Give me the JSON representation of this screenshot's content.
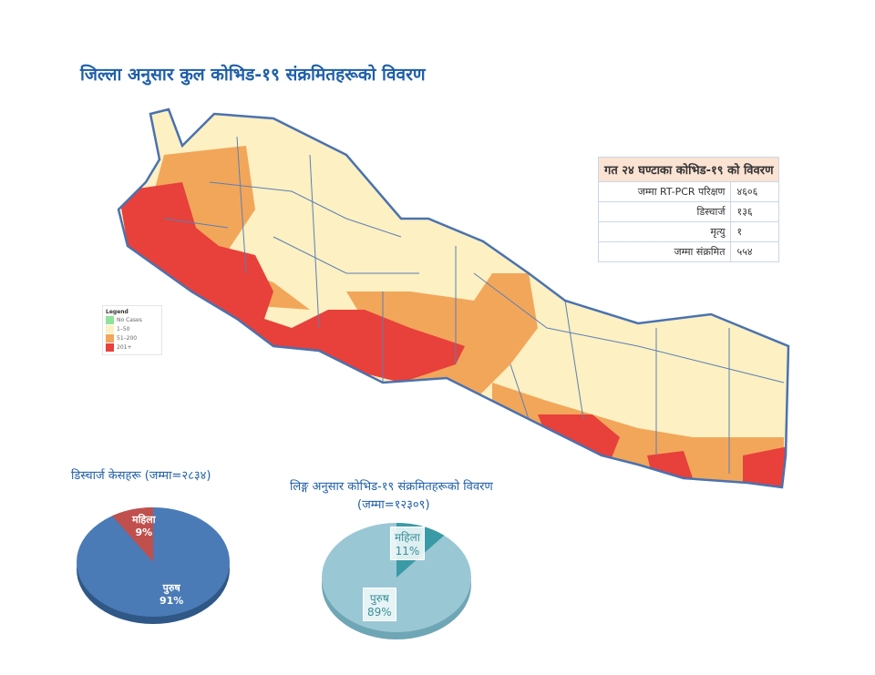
{
  "title": "जिल्ला अनुसार कुल कोभिड-१९ संक्रमितहरूको विवरण",
  "legend": {
    "title": "Legend",
    "items": [
      {
        "label": "No Cases",
        "color": "#8fe39a"
      },
      {
        "label": "1–50",
        "color": "#fdf0c2"
      },
      {
        "label": "51–200",
        "color": "#f2a65a"
      },
      {
        "label": "201+",
        "color": "#e8403a"
      }
    ]
  },
  "stats": {
    "title": "गत २४ घण्टाका कोभिड-१९ को विवरण",
    "rows": [
      {
        "label": "जम्मा RT-PCR परिक्षण",
        "value": "४६०६"
      },
      {
        "label": "डिस्चार्ज",
        "value": "१३६"
      },
      {
        "label": "मृत्यु",
        "value": "१"
      },
      {
        "label": "जम्मा संक्रमित",
        "value": "५५४"
      }
    ]
  },
  "discharge": {
    "title": "डिस्चार्ज केसहरू (जम्मा=२८३४)",
    "female": {
      "label": "महिला",
      "pct": "9%",
      "value": 9
    },
    "male": {
      "label": "पुरुष",
      "pct": "91%",
      "value": 91
    },
    "colors": {
      "male": "#4a7bb7",
      "female": "#c0504d"
    }
  },
  "gender": {
    "title": "लिङ्ग अनुसार कोभिड-१९ संक्रमितहरूको विवरण",
    "subtitle": "(जम्मा=१२३०९)",
    "female": {
      "label": "महिला",
      "pct": "11%",
      "value": 11
    },
    "male": {
      "label": "पुरुष",
      "pct": "89%",
      "value": 89
    },
    "colors": {
      "male": "#9ac7d4",
      "female": "#3a9aa5"
    }
  }
}
